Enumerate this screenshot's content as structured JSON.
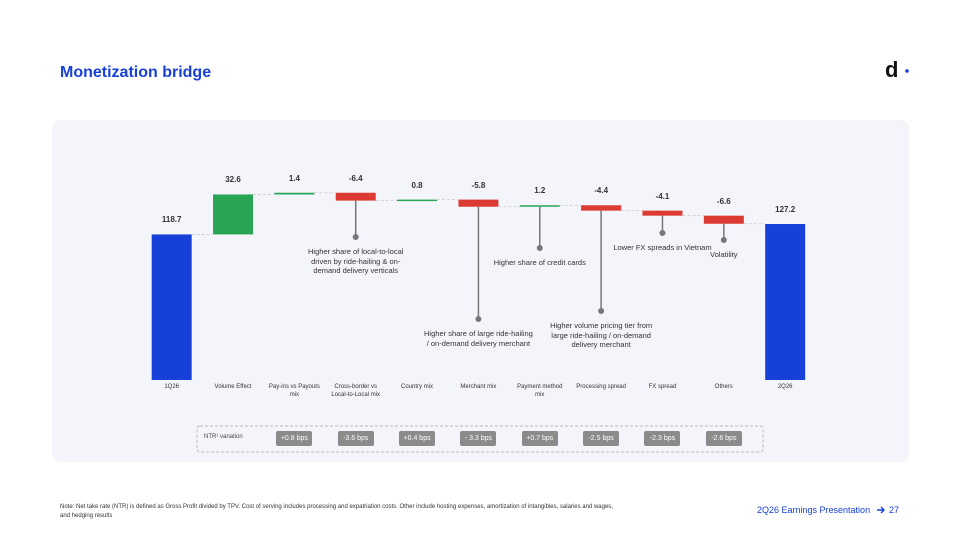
{
  "header": {
    "title": "Monetization bridge",
    "logo": "d"
  },
  "chart_data": {
    "type": "waterfall",
    "categories": [
      "1Q26",
      "Volume Effect",
      "Pay-ins vs Payouts mix",
      "Cross-border vs Local-to-Local mix",
      "Country mix",
      "Merchant mix",
      "Payment method mix",
      "Processing spread",
      "FX spread",
      "Others",
      "2Q26"
    ],
    "values": [
      118.7,
      32.6,
      1.4,
      -6.4,
      0.8,
      -5.8,
      1.2,
      -4.4,
      -4.1,
      -6.6,
      127.2
    ],
    "measures": [
      "total",
      "relative",
      "relative",
      "relative",
      "relative",
      "relative",
      "relative",
      "relative",
      "relative",
      "relative",
      "total"
    ],
    "colors": {
      "total": "#1740d8",
      "increase": "#27a555",
      "decrease": "#db3b33"
    },
    "ylim": [
      0,
      190
    ],
    "annotations": [
      null,
      null,
      null,
      "Higher share of local-to-local driven by ride-hailing & on-demand delivery verticals",
      null,
      "Higher share of large ride-hailing / on-demand delivery merchant",
      "Higher share of credit cards",
      "Higher volume pricing tier from large ride-hailing / on-demand delivery merchant",
      "Lower FX spreads in Vietnam",
      "Volatility",
      null
    ]
  },
  "ntr_variation": {
    "label": "NTR¹ variation",
    "values": [
      null,
      null,
      "+0.8 bps",
      "-3.6 bps",
      "+0.4 bps",
      "- 3.3 bps",
      "+0.7 bps",
      "-2.5 bps",
      "-2.3 bps",
      "-2.6 bps",
      null
    ]
  },
  "footer": {
    "note": "Note: Net take rate (NTR) is defined as Gross Profit divided by TPV. Cost of serving includes processing and expatriation costs. Other include hosting expenses, amortization of intangibles, salaries and wages, and hedging results",
    "presentation": "2Q26 Earnings Presentation",
    "page": 27
  }
}
